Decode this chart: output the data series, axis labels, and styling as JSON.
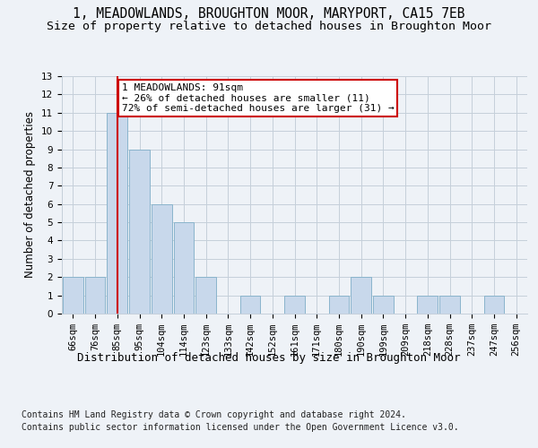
{
  "title_line1": "1, MEADOWLANDS, BROUGHTON MOOR, MARYPORT, CA15 7EB",
  "title_line2": "Size of property relative to detached houses in Broughton Moor",
  "xlabel": "Distribution of detached houses by size in Broughton Moor",
  "ylabel": "Number of detached properties",
  "categories": [
    "66sqm",
    "76sqm",
    "85sqm",
    "95sqm",
    "104sqm",
    "114sqm",
    "123sqm",
    "133sqm",
    "142sqm",
    "152sqm",
    "161sqm",
    "171sqm",
    "180sqm",
    "190sqm",
    "199sqm",
    "209sqm",
    "218sqm",
    "228sqm",
    "237sqm",
    "247sqm",
    "256sqm"
  ],
  "values": [
    2,
    2,
    11,
    9,
    6,
    5,
    2,
    0,
    1,
    0,
    1,
    0,
    1,
    2,
    1,
    0,
    1,
    1,
    0,
    1,
    0
  ],
  "bar_color": "#c8d8eb",
  "bar_edge_color": "#8ab4cc",
  "vline_color": "#cc0000",
  "vline_index": 2,
  "ylim": [
    0,
    13
  ],
  "yticks": [
    0,
    1,
    2,
    3,
    4,
    5,
    6,
    7,
    8,
    9,
    10,
    11,
    12,
    13
  ],
  "annotation_text": "1 MEADOWLANDS: 91sqm\n← 26% of detached houses are smaller (11)\n72% of semi-detached houses are larger (31) →",
  "annotation_box_color": "#ffffff",
  "annotation_box_edge": "#cc0000",
  "footer_line1": "Contains HM Land Registry data © Crown copyright and database right 2024.",
  "footer_line2": "Contains public sector information licensed under the Open Government Licence v3.0.",
  "background_color": "#eef2f7",
  "grid_color": "#c5cfda",
  "title_fontsize": 10.5,
  "subtitle_fontsize": 9.5,
  "ylabel_fontsize": 8.5,
  "xlabel_fontsize": 9,
  "tick_fontsize": 7.5,
  "footer_fontsize": 7,
  "ann_fontsize": 8
}
